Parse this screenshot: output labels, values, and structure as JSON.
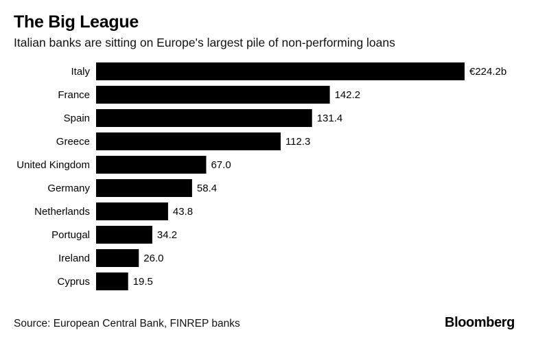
{
  "header": {
    "title": "The Big League",
    "subtitle": "Italian banks are sitting on Europe's largest pile of non-performing loans"
  },
  "footer": {
    "source": "Source: European Central Bank, FINREP banks",
    "brand": "Bloomberg"
  },
  "chart_data": {
    "type": "bar",
    "orientation": "horizontal",
    "title": "The Big League",
    "subtitle": "Italian banks are sitting on Europe's largest pile of non-performing loans",
    "categories": [
      "Italy",
      "France",
      "Spain",
      "Greece",
      "United Kingdom",
      "Germany",
      "Netherlands",
      "Portugal",
      "Ireland",
      "Cyprus"
    ],
    "values": [
      224.2,
      142.2,
      131.4,
      112.3,
      67.0,
      58.4,
      43.8,
      34.2,
      26.0,
      19.5
    ],
    "value_labels": [
      "€224.2b",
      "142.2",
      "131.4",
      "112.3",
      "67.0",
      "58.4",
      "43.8",
      "34.2",
      "26.0",
      "19.5"
    ],
    "xlim": [
      0,
      224.2
    ],
    "grid": false,
    "legend": "none",
    "colors": {
      "bar": "#000000",
      "text": "#000000"
    }
  }
}
